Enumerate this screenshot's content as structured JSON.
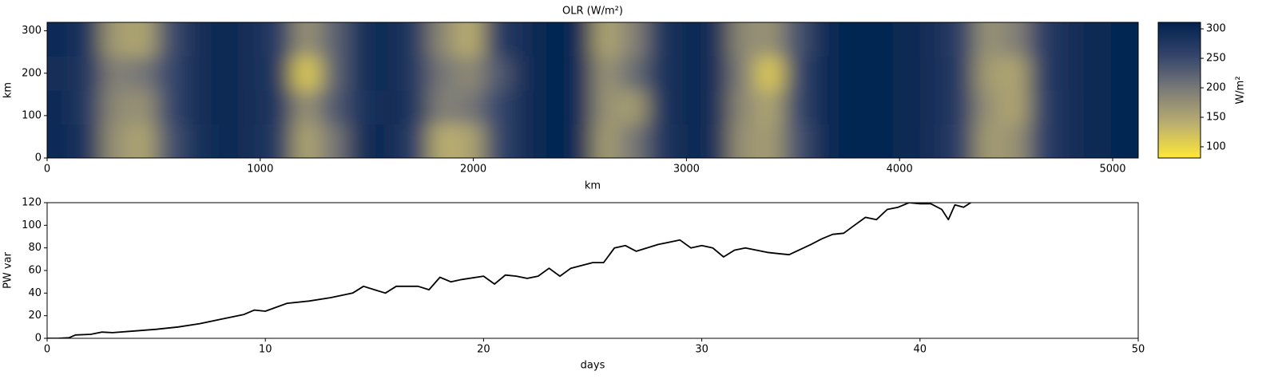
{
  "chart_data": [
    {
      "type": "heatmap",
      "title": "OLR (W/m²)",
      "xlabel": "km",
      "ylabel": "km",
      "x": [
        64,
        192,
        320,
        448,
        576,
        704,
        832,
        960,
        1088,
        1216,
        1344,
        1472,
        1600,
        1728,
        1856,
        1984,
        2112,
        2240,
        2368,
        2496,
        2624,
        2752,
        2880,
        3008,
        3136,
        3264,
        3392,
        3520,
        3648,
        3776,
        3904,
        4032,
        4160,
        4288,
        4416,
        4544,
        4672,
        4800,
        4928,
        5056
      ],
      "y": [
        40,
        120,
        200,
        280
      ],
      "z": [
        [
          295,
          280,
          170,
          150,
          240,
          285,
          300,
          290,
          270,
          150,
          200,
          290,
          300,
          260,
          140,
          150,
          250,
          290,
          305,
          295,
          160,
          200,
          275,
          300,
          290,
          170,
          160,
          240,
          295,
          305,
          305,
          300,
          290,
          260,
          160,
          170,
          260,
          290,
          300,
          305
        ],
        [
          295,
          270,
          180,
          170,
          250,
          290,
          300,
          290,
          275,
          170,
          230,
          280,
          300,
          275,
          190,
          200,
          250,
          290,
          305,
          295,
          170,
          160,
          280,
          300,
          290,
          180,
          150,
          250,
          295,
          305,
          305,
          300,
          290,
          265,
          170,
          150,
          260,
          290,
          300,
          305
        ],
        [
          290,
          275,
          190,
          200,
          250,
          290,
          300,
          290,
          270,
          110,
          220,
          285,
          300,
          270,
          200,
          180,
          230,
          290,
          305,
          295,
          170,
          210,
          280,
          300,
          290,
          190,
          110,
          250,
          295,
          305,
          305,
          300,
          290,
          265,
          160,
          150,
          265,
          290,
          300,
          305
        ],
        [
          295,
          280,
          160,
          150,
          245,
          290,
          300,
          290,
          265,
          170,
          220,
          285,
          300,
          270,
          180,
          140,
          265,
          290,
          305,
          295,
          150,
          190,
          280,
          300,
          290,
          180,
          170,
          240,
          295,
          305,
          305,
          300,
          290,
          260,
          170,
          190,
          265,
          290,
          300,
          305
        ]
      ],
      "xlim": [
        0,
        5120
      ],
      "ylim": [
        0,
        320
      ],
      "xticks": [
        0,
        1000,
        2000,
        3000,
        4000,
        5000
      ],
      "yticks": [
        0,
        100,
        200,
        300
      ],
      "colormap": [
        "#fee838",
        "#bcaf6f",
        "#7d7c78",
        "#35456c",
        "#00224e"
      ],
      "clim": [
        81,
        311
      ],
      "cticks": [
        100,
        150,
        200,
        250,
        300
      ],
      "clabel": "W/m²"
    },
    {
      "type": "line",
      "xlabel": "days",
      "ylabel": "PW var",
      "color": "#000000",
      "x": [
        0,
        0.5,
        1,
        1.3,
        2,
        2.5,
        3,
        4,
        5,
        6,
        7,
        8,
        9,
        9.5,
        10,
        11,
        12,
        13,
        14,
        14.5,
        15,
        15.5,
        16,
        17,
        17.5,
        18,
        18.5,
        19,
        20,
        20.5,
        21,
        21.5,
        22,
        22.5,
        23,
        23.5,
        24,
        25,
        25.5,
        26,
        26.5,
        27,
        28,
        28.5,
        29,
        29.5,
        30,
        30.5,
        31,
        31.5,
        32,
        32.5,
        33,
        33.5,
        34,
        35,
        35.5,
        36,
        36.5,
        37,
        37.5,
        38,
        38.5,
        39,
        39.5,
        40,
        40.5,
        41,
        41.3,
        41.6,
        42,
        42.4
      ],
      "values": [
        0,
        0,
        0.5,
        3,
        3.5,
        5.5,
        5,
        6.5,
        8,
        10,
        13,
        17,
        21,
        25,
        24,
        31,
        33,
        36,
        40,
        46,
        43,
        40,
        46,
        46,
        43,
        54,
        50,
        52,
        55,
        48,
        56,
        55,
        53,
        55,
        62,
        55,
        62,
        67,
        67,
        80,
        82,
        77,
        83,
        85,
        87,
        80,
        82,
        80,
        72,
        78,
        80,
        78,
        76,
        75,
        74,
        83,
        88,
        92,
        93,
        100,
        107,
        105,
        114,
        116,
        120,
        119,
        119,
        114,
        105,
        118,
        116,
        121
      ],
      "xlim": [
        0,
        50
      ],
      "ylim": [
        0,
        120
      ],
      "xticks": [
        0,
        10,
        20,
        30,
        40,
        50
      ],
      "yticks": [
        0,
        20,
        40,
        60,
        80,
        100,
        120
      ]
    }
  ]
}
